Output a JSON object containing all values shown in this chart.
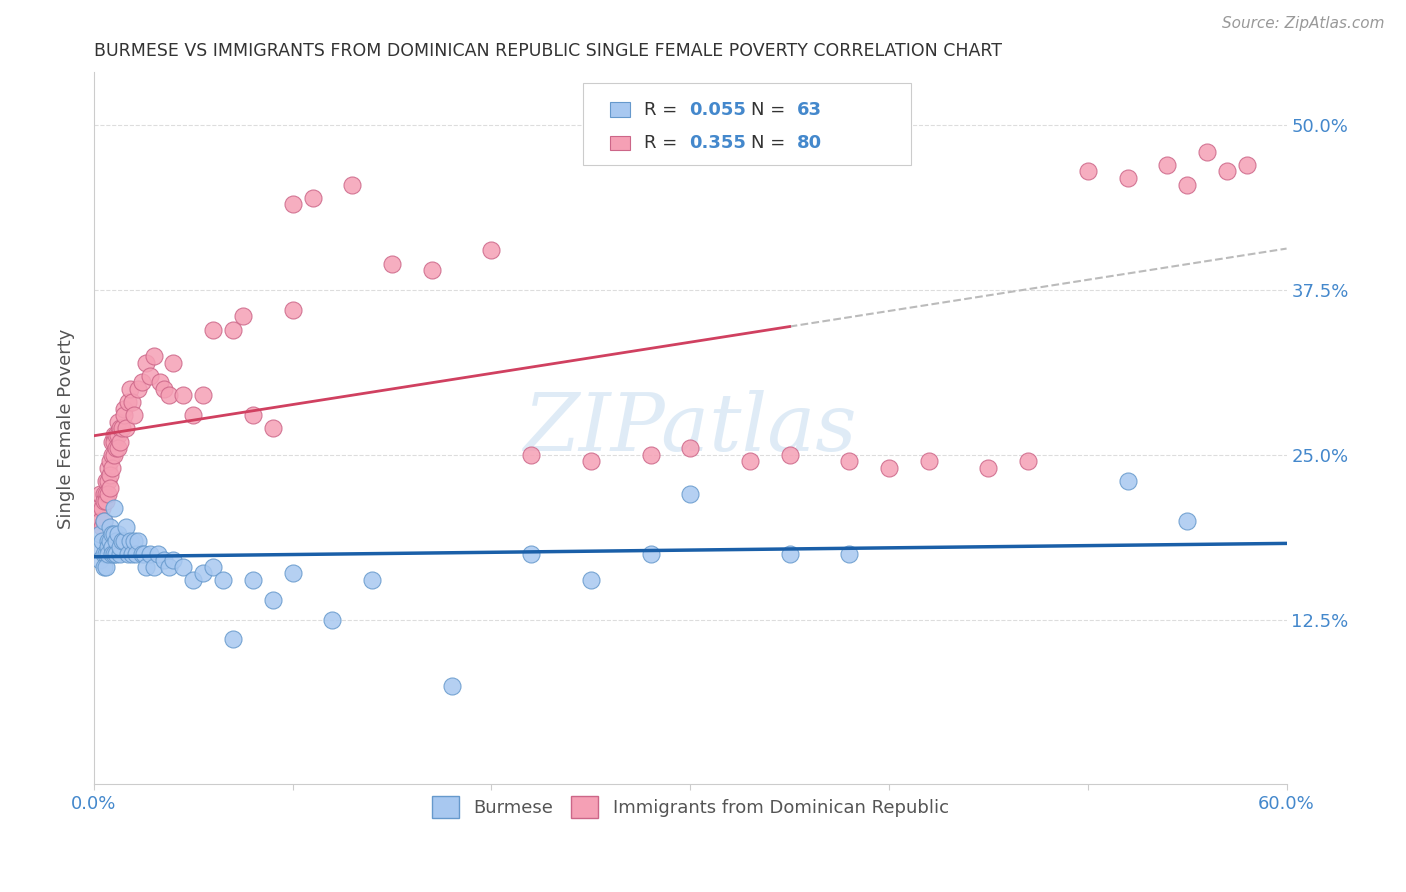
{
  "title": "BURMESE VS IMMIGRANTS FROM DOMINICAN REPUBLIC SINGLE FEMALE POVERTY CORRELATION CHART",
  "source": "Source: ZipAtlas.com",
  "ylabel": "Single Female Poverty",
  "xlim": [
    0.0,
    0.6
  ],
  "ylim": [
    0.0,
    0.54
  ],
  "xticks": [
    0.0,
    0.1,
    0.2,
    0.3,
    0.4,
    0.5,
    0.6
  ],
  "xtick_labels": [
    "0.0%",
    "",
    "",
    "",
    "",
    "",
    "60.0%"
  ],
  "ytick_labels": [
    "12.5%",
    "25.0%",
    "37.5%",
    "50.0%"
  ],
  "ytick_positions": [
    0.125,
    0.25,
    0.375,
    0.5
  ],
  "burmese_color": "#a8c8f0",
  "burmese_edge": "#6699cc",
  "dominican_color": "#f5a0b5",
  "dominican_edge": "#cc6688",
  "line_blue": "#1a5fa8",
  "line_pink": "#d04060",
  "line_dashed_color": "#bbbbbb",
  "R_burmese": 0.055,
  "N_burmese": 63,
  "R_dominican": 0.355,
  "N_dominican": 80,
  "legend_label_burmese": "Burmese",
  "legend_label_dominican": "Immigrants from Dominican Republic",
  "watermark": "ZIPatlas",
  "burmese_x": [
    0.002,
    0.003,
    0.003,
    0.004,
    0.005,
    0.005,
    0.005,
    0.006,
    0.006,
    0.007,
    0.007,
    0.007,
    0.008,
    0.008,
    0.009,
    0.009,
    0.009,
    0.01,
    0.01,
    0.01,
    0.011,
    0.011,
    0.012,
    0.013,
    0.013,
    0.014,
    0.015,
    0.016,
    0.017,
    0.018,
    0.019,
    0.02,
    0.021,
    0.022,
    0.024,
    0.025,
    0.026,
    0.028,
    0.03,
    0.032,
    0.035,
    0.038,
    0.04,
    0.045,
    0.05,
    0.055,
    0.06,
    0.065,
    0.07,
    0.08,
    0.09,
    0.1,
    0.12,
    0.14,
    0.18,
    0.22,
    0.25,
    0.28,
    0.3,
    0.35,
    0.38,
    0.52,
    0.55
  ],
  "burmese_y": [
    0.18,
    0.19,
    0.17,
    0.185,
    0.175,
    0.165,
    0.2,
    0.175,
    0.165,
    0.185,
    0.18,
    0.175,
    0.195,
    0.185,
    0.19,
    0.18,
    0.175,
    0.21,
    0.19,
    0.175,
    0.185,
    0.175,
    0.19,
    0.175,
    0.18,
    0.185,
    0.185,
    0.195,
    0.175,
    0.185,
    0.175,
    0.185,
    0.175,
    0.185,
    0.175,
    0.175,
    0.165,
    0.175,
    0.165,
    0.175,
    0.17,
    0.165,
    0.17,
    0.165,
    0.155,
    0.16,
    0.165,
    0.155,
    0.11,
    0.155,
    0.14,
    0.16,
    0.125,
    0.155,
    0.075,
    0.175,
    0.155,
    0.175,
    0.22,
    0.175,
    0.175,
    0.23,
    0.2
  ],
  "dominican_x": [
    0.002,
    0.003,
    0.003,
    0.004,
    0.004,
    0.005,
    0.005,
    0.005,
    0.006,
    0.006,
    0.006,
    0.007,
    0.007,
    0.007,
    0.008,
    0.008,
    0.008,
    0.009,
    0.009,
    0.009,
    0.01,
    0.01,
    0.01,
    0.011,
    0.011,
    0.012,
    0.012,
    0.012,
    0.013,
    0.013,
    0.014,
    0.015,
    0.015,
    0.016,
    0.017,
    0.018,
    0.019,
    0.02,
    0.022,
    0.024,
    0.026,
    0.028,
    0.03,
    0.033,
    0.035,
    0.038,
    0.04,
    0.045,
    0.05,
    0.055,
    0.06,
    0.07,
    0.075,
    0.08,
    0.09,
    0.1,
    0.1,
    0.11,
    0.13,
    0.15,
    0.17,
    0.2,
    0.22,
    0.25,
    0.28,
    0.3,
    0.33,
    0.35,
    0.38,
    0.4,
    0.42,
    0.45,
    0.47,
    0.5,
    0.52,
    0.54,
    0.55,
    0.56,
    0.57,
    0.58
  ],
  "dominican_y": [
    0.21,
    0.2,
    0.22,
    0.21,
    0.195,
    0.22,
    0.215,
    0.2,
    0.23,
    0.22,
    0.215,
    0.24,
    0.23,
    0.22,
    0.245,
    0.235,
    0.225,
    0.26,
    0.25,
    0.24,
    0.265,
    0.26,
    0.25,
    0.265,
    0.255,
    0.275,
    0.265,
    0.255,
    0.27,
    0.26,
    0.27,
    0.285,
    0.28,
    0.27,
    0.29,
    0.3,
    0.29,
    0.28,
    0.3,
    0.305,
    0.32,
    0.31,
    0.325,
    0.305,
    0.3,
    0.295,
    0.32,
    0.295,
    0.28,
    0.295,
    0.345,
    0.345,
    0.355,
    0.28,
    0.27,
    0.36,
    0.44,
    0.445,
    0.455,
    0.395,
    0.39,
    0.405,
    0.25,
    0.245,
    0.25,
    0.255,
    0.245,
    0.25,
    0.245,
    0.24,
    0.245,
    0.24,
    0.245,
    0.465,
    0.46,
    0.47,
    0.455,
    0.48,
    0.465,
    0.47
  ],
  "background_color": "#ffffff",
  "grid_color": "#dddddd",
  "title_color": "#333333",
  "axis_label_color": "#555555",
  "tick_color": "#4488cc",
  "right_ytick_color": "#4488cc"
}
